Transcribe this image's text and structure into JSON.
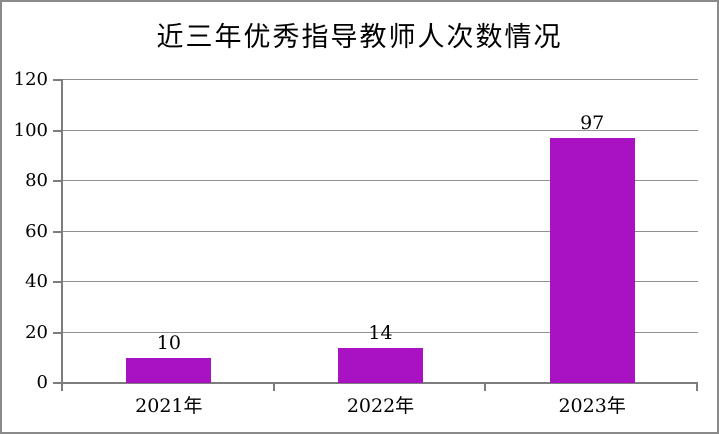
{
  "chart_data": {
    "type": "bar",
    "title": "近三年优秀指导教师人次数情况",
    "categories": [
      "2021年",
      "2022年",
      "2023年"
    ],
    "values": [
      10,
      14,
      97
    ],
    "data_labels": [
      "10",
      "14",
      "97"
    ],
    "xlabel": "",
    "ylabel": "",
    "ylim": [
      0,
      120
    ],
    "yticks": [
      0,
      20,
      40,
      60,
      80,
      100,
      120
    ],
    "grid": "horizontal",
    "legend": "none",
    "bar_color": "#a812c3",
    "gridline_color": "#909090",
    "axis_color": "#7d7d7d",
    "border_color": "#8a8a8a",
    "text_color": "#000000"
  }
}
